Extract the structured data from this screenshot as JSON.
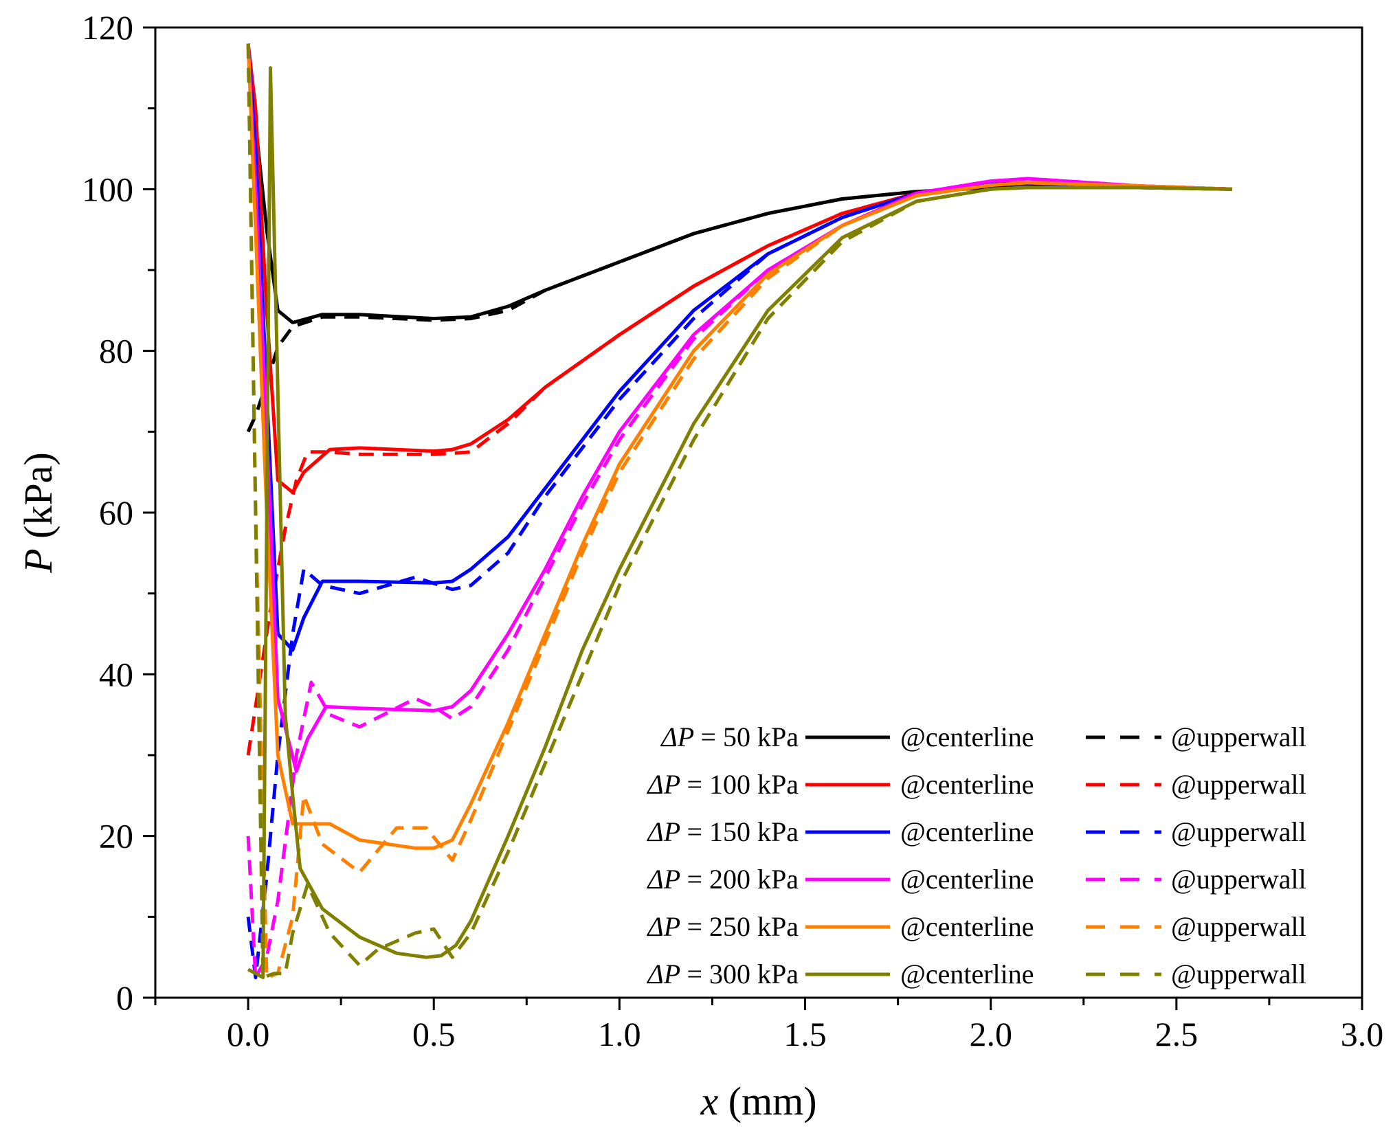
{
  "chart_data": {
    "type": "line",
    "title": "",
    "xlabel": {
      "symbol": "x",
      "unit": " (mm)"
    },
    "ylabel": {
      "symbol": "P",
      "unit": " (kPa)"
    },
    "xlim": [
      -0.25,
      3.0
    ],
    "ylim": [
      0,
      120
    ],
    "xticks": [
      0.0,
      0.5,
      1.0,
      1.5,
      2.0,
      2.5,
      3.0
    ],
    "xtick_labels": [
      "0.0",
      "0.5",
      "1.0",
      "1.5",
      "2.0",
      "2.5",
      "3.0"
    ],
    "yticks": [
      0,
      20,
      40,
      60,
      80,
      100,
      120
    ],
    "ytick_labels": [
      "0",
      "20",
      "40",
      "60",
      "80",
      "100",
      "120"
    ],
    "grid": false,
    "legend_position": "bottom-right",
    "legend_prefix": "ΔP",
    "legend": [
      {
        "label": "= 50 kPa",
        "centerline": "@centerline",
        "upperwall": "@upperwall",
        "color": "#000000"
      },
      {
        "label": "= 100 kPa",
        "centerline": "@centerline",
        "upperwall": "@upperwall",
        "color": "#ff0000"
      },
      {
        "label": "= 150 kPa",
        "centerline": "@centerline",
        "upperwall": "@upperwall",
        "color": "#0000ff"
      },
      {
        "label": "= 200 kPa",
        "centerline": "@centerline",
        "upperwall": "@upperwall",
        "color": "#ff00ff"
      },
      {
        "label": "= 250 kPa",
        "centerline": "@centerline",
        "upperwall": "@upperwall",
        "color": "#ff8000"
      },
      {
        "label": "= 300 kPa",
        "centerline": "@centerline",
        "upperwall": "@upperwall",
        "color": "#808000"
      }
    ],
    "series": [
      {
        "name": "ΔP = 50 kPa @centerline",
        "color": "#000000",
        "dash": false,
        "x": [
          0.0,
          0.02,
          0.05,
          0.08,
          0.12,
          0.2,
          0.3,
          0.5,
          0.6,
          0.7,
          0.8,
          1.0,
          1.2,
          1.4,
          1.6,
          1.8,
          2.0,
          2.2,
          2.4,
          2.65
        ],
        "y": [
          118,
          108,
          95,
          85,
          83.5,
          84.5,
          84.5,
          84,
          84.2,
          85.5,
          87.5,
          91,
          94.5,
          97,
          98.8,
          99.7,
          100.2,
          100.3,
          100.2,
          100
        ]
      },
      {
        "name": "ΔP = 50 kPa @upperwall",
        "color": "#000000",
        "dash": true,
        "x": [
          0.0,
          0.02,
          0.05,
          0.08,
          0.12,
          0.2,
          0.3,
          0.5,
          0.6,
          0.7,
          0.8,
          1.0,
          1.2,
          1.4,
          1.6,
          1.8,
          2.0,
          2.2,
          2.4,
          2.65
        ],
        "y": [
          70,
          72,
          76,
          80.5,
          83,
          84.2,
          84.2,
          83.8,
          84,
          85,
          87.5,
          91,
          94.5,
          97,
          98.8,
          99.7,
          100.2,
          100.3,
          100.2,
          100
        ]
      },
      {
        "name": "ΔP = 100 kPa @centerline",
        "color": "#ff0000",
        "dash": false,
        "x": [
          0.0,
          0.02,
          0.05,
          0.08,
          0.12,
          0.15,
          0.22,
          0.3,
          0.5,
          0.55,
          0.6,
          0.7,
          0.8,
          1.0,
          1.2,
          1.4,
          1.6,
          1.8,
          2.0,
          2.1,
          2.4,
          2.65
        ],
        "y": [
          118,
          110,
          85,
          64,
          62.5,
          65,
          67.8,
          68,
          67.6,
          67.8,
          68.5,
          71.5,
          75.5,
          82,
          88,
          93,
          97,
          99.5,
          100.6,
          100.8,
          100.4,
          100
        ]
      },
      {
        "name": "ΔP = 100 kPa @upperwall",
        "color": "#ff0000",
        "dash": true,
        "x": [
          0.0,
          0.03,
          0.06,
          0.1,
          0.13,
          0.16,
          0.22,
          0.3,
          0.5,
          0.6,
          0.7,
          0.8,
          1.0,
          1.2,
          1.4,
          1.6,
          1.8,
          2.0,
          2.1,
          2.4,
          2.65
        ],
        "y": [
          30,
          39,
          48,
          58,
          64,
          67.5,
          67.5,
          67.2,
          67.2,
          67.5,
          71,
          75.5,
          82,
          88,
          93,
          97,
          99.5,
          100.6,
          100.8,
          100.4,
          100
        ]
      },
      {
        "name": "ΔP = 150 kPa @centerline",
        "color": "#0000ff",
        "dash": false,
        "x": [
          0.0,
          0.02,
          0.05,
          0.08,
          0.12,
          0.15,
          0.2,
          0.3,
          0.5,
          0.55,
          0.6,
          0.7,
          0.8,
          1.0,
          1.2,
          1.4,
          1.6,
          1.8,
          2.0,
          2.1,
          2.4,
          2.65
        ],
        "y": [
          118,
          105,
          75,
          45,
          43,
          47,
          51.5,
          51.5,
          51.3,
          51.5,
          53,
          57,
          63,
          75,
          85,
          92,
          96.5,
          99.5,
          100.6,
          100.7,
          100.3,
          100
        ]
      },
      {
        "name": "ΔP = 150 kPa @upperwall",
        "color": "#0000ff",
        "dash": true,
        "x": [
          0.0,
          0.02,
          0.05,
          0.08,
          0.12,
          0.15,
          0.2,
          0.3,
          0.45,
          0.55,
          0.6,
          0.7,
          0.8,
          1.0,
          1.2,
          1.4,
          1.6,
          1.8,
          2.0,
          2.1,
          2.4,
          2.65
        ],
        "y": [
          10,
          2.5,
          15,
          30,
          45,
          53,
          51,
          50,
          52,
          50.5,
          51,
          55,
          62,
          74,
          84,
          92,
          96.5,
          99.5,
          100.6,
          100.7,
          100.3,
          100
        ]
      },
      {
        "name": "ΔP = 200 kPa @centerline",
        "color": "#ff00ff",
        "dash": false,
        "x": [
          0.0,
          0.02,
          0.05,
          0.08,
          0.13,
          0.16,
          0.21,
          0.3,
          0.5,
          0.55,
          0.6,
          0.7,
          0.8,
          0.9,
          1.0,
          1.2,
          1.4,
          1.6,
          1.8,
          2.0,
          2.1,
          2.4,
          2.65
        ],
        "y": [
          118,
          100,
          70,
          37,
          28,
          32,
          36,
          35.8,
          35.5,
          36,
          38,
          45,
          53,
          62,
          70,
          82,
          90,
          95.5,
          99.5,
          101,
          101.3,
          100.4,
          100
        ]
      },
      {
        "name": "ΔP = 200 kPa @upperwall",
        "color": "#ff00ff",
        "dash": true,
        "x": [
          0.0,
          0.02,
          0.05,
          0.08,
          0.13,
          0.17,
          0.22,
          0.3,
          0.45,
          0.5,
          0.55,
          0.6,
          0.7,
          0.8,
          0.9,
          1.0,
          1.2,
          1.4,
          1.6,
          1.8,
          2.0,
          2.1,
          2.4,
          2.65
        ],
        "y": [
          20,
          2.5,
          5,
          12,
          30,
          39,
          35,
          33.5,
          37,
          36,
          34.5,
          36,
          43,
          52,
          61,
          69,
          81.5,
          90,
          95.5,
          99.5,
          101,
          101.3,
          100.4,
          100
        ]
      },
      {
        "name": "ΔP = 250 kPa @centerline",
        "color": "#ff8000",
        "dash": false,
        "x": [
          0.0,
          0.02,
          0.05,
          0.08,
          0.12,
          0.15,
          0.22,
          0.3,
          0.45,
          0.5,
          0.55,
          0.6,
          0.7,
          0.8,
          0.9,
          1.0,
          1.2,
          1.4,
          1.6,
          1.8,
          2.0,
          2.1,
          2.4,
          2.65
        ],
        "y": [
          118,
          95,
          60,
          30,
          21.5,
          21.5,
          21.5,
          19.5,
          18.5,
          18.5,
          19.5,
          24,
          34,
          45,
          56,
          66,
          80,
          89.5,
          95.5,
          99.2,
          100.5,
          100.8,
          100.4,
          100
        ]
      },
      {
        "name": "ΔP = 250 kPa @upperwall",
        "color": "#ff8000",
        "dash": true,
        "x": [
          0.0,
          0.02,
          0.05,
          0.08,
          0.12,
          0.15,
          0.2,
          0.3,
          0.4,
          0.48,
          0.55,
          0.6,
          0.7,
          0.8,
          0.9,
          1.0,
          1.2,
          1.4,
          1.6,
          1.8,
          2.0,
          2.1,
          2.4,
          2.65
        ],
        "y": [
          118,
          60,
          2.5,
          3,
          10,
          25,
          19,
          15.5,
          21,
          21,
          17,
          22,
          33,
          44,
          55,
          65,
          79,
          89,
          95.5,
          99.2,
          100.5,
          100.8,
          100.4,
          100
        ]
      },
      {
        "name": "ΔP = 300 kPa @centerline",
        "color": "#808000",
        "dash": false,
        "x": [
          0.0,
          0.02,
          0.04,
          0.06,
          0.1,
          0.12,
          0.14,
          0.2,
          0.3,
          0.4,
          0.48,
          0.52,
          0.56,
          0.6,
          0.7,
          0.8,
          0.9,
          1.0,
          1.2,
          1.4,
          1.6,
          1.8,
          2.0,
          2.1,
          2.4,
          2.65
        ],
        "y": [
          3.5,
          3.0,
          2.5,
          115,
          35,
          25,
          16,
          11,
          7.5,
          5.5,
          5,
          5.2,
          6.5,
          9.5,
          20,
          31,
          43,
          53,
          71,
          85,
          94,
          98.5,
          100,
          100.2,
          100.2,
          100
        ]
      },
      {
        "name": "ΔP = 300 kPa @upperwall",
        "color": "#808000",
        "dash": true,
        "x": [
          0.0,
          0.04,
          0.07,
          0.1,
          0.12,
          0.16,
          0.22,
          0.3,
          0.35,
          0.45,
          0.5,
          0.55,
          0.6,
          0.7,
          0.8,
          0.9,
          1.0,
          1.2,
          1.4,
          1.6,
          1.8,
          2.0,
          2.1,
          2.4,
          2.65
        ],
        "y": [
          118,
          2.5,
          3,
          3,
          8,
          14,
          8,
          4,
          6,
          8,
          8.5,
          5,
          8,
          18,
          29,
          40,
          51,
          69,
          84,
          93.5,
          98.5,
          100,
          100.2,
          100.2,
          100
        ]
      }
    ]
  }
}
